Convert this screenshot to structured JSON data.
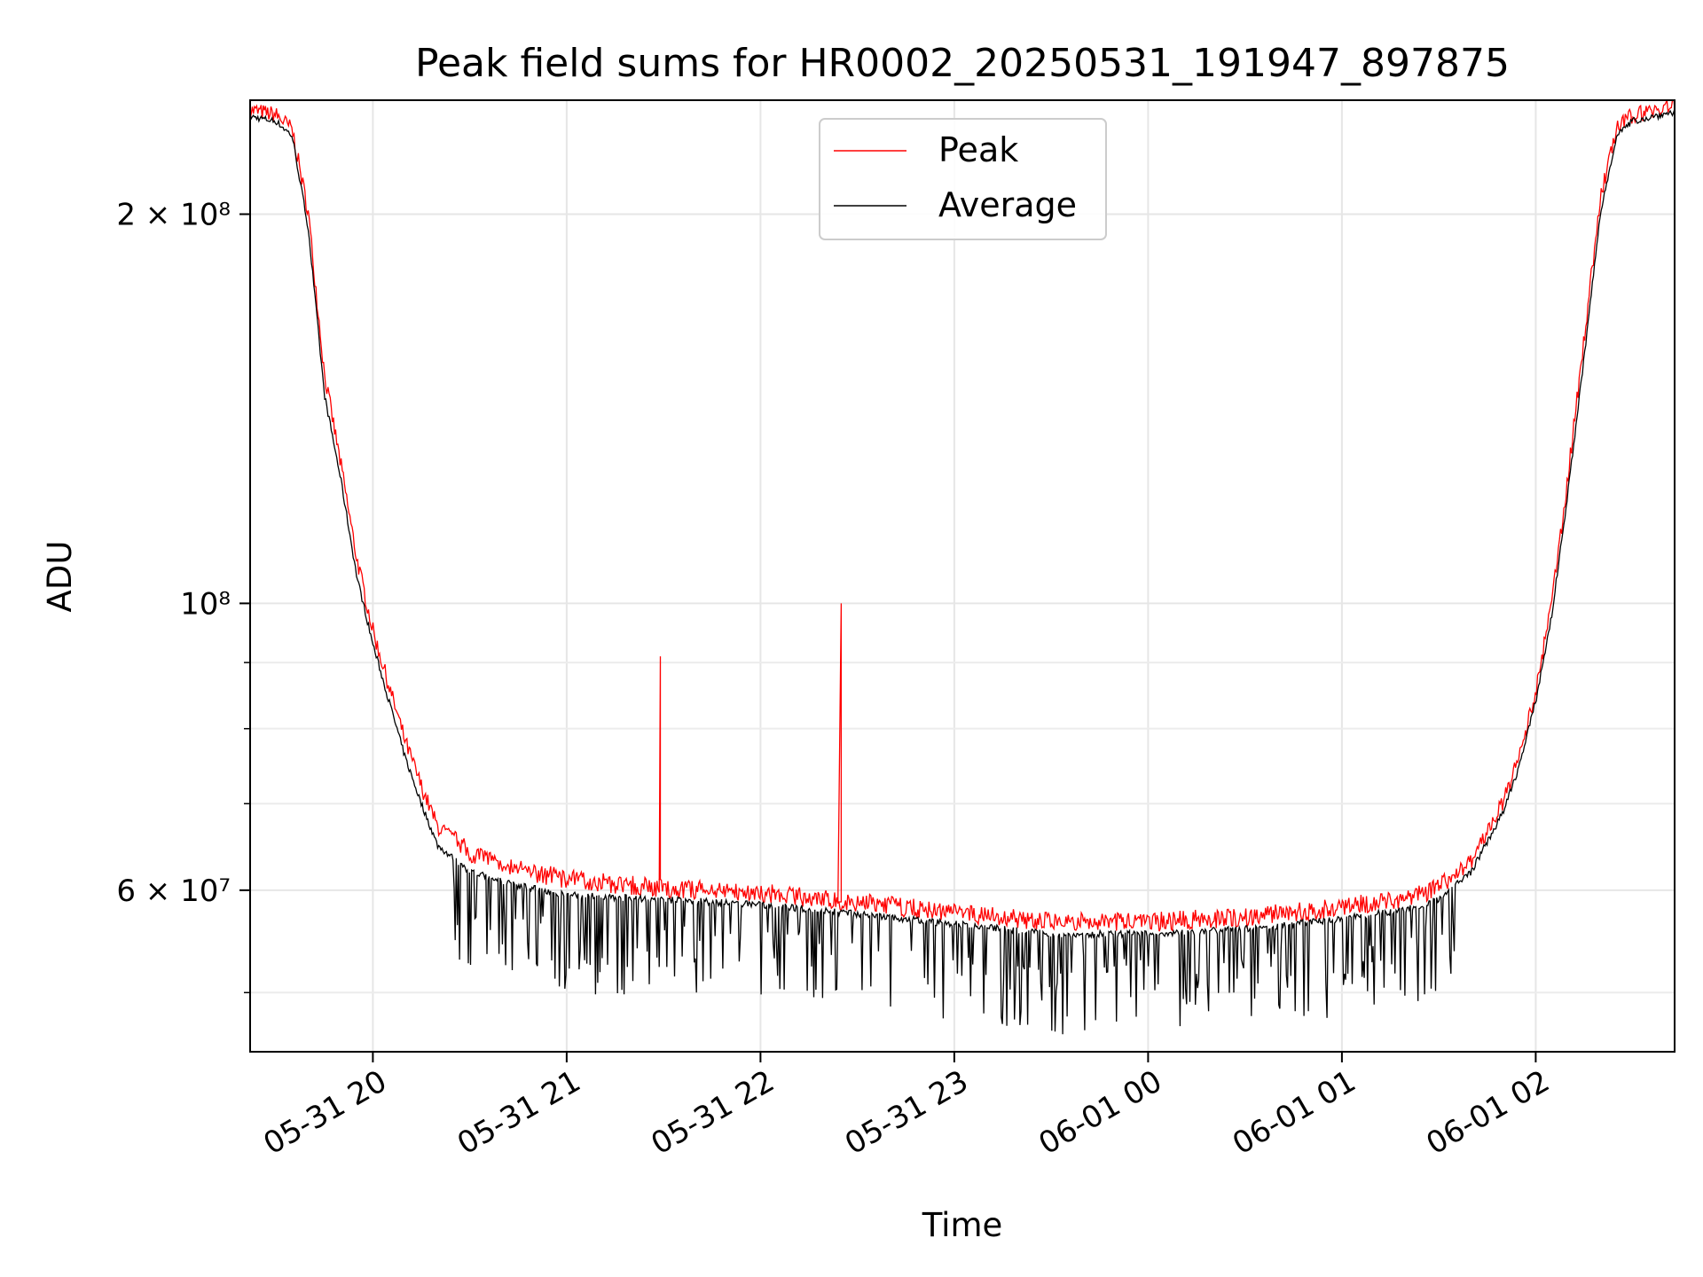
{
  "chart_data": {
    "type": "line",
    "title": "Peak field sums for HR0002_20250531_191947_897875",
    "xlabel": "Time",
    "ylabel": "ADU",
    "yscale": "log",
    "ylim": [
      45000000,
      245000000
    ],
    "xlim": [
      "2025-05-31 19:22",
      "2025-06-01 02:43"
    ],
    "grid": true,
    "legend": "top-center",
    "x_ticks": [
      "05-31 20",
      "05-31 21",
      "05-31 22",
      "05-31 23",
      "06-01 00",
      "06-01 01",
      "06-01 02"
    ],
    "y_ticks": [
      "6 × 10⁷",
      "10⁸",
      "2 × 10⁸"
    ],
    "x": [
      "2025-05-31 19:22",
      "2025-05-31 19:30",
      "2025-05-31 19:35",
      "2025-05-31 19:40",
      "2025-05-31 19:45",
      "2025-05-31 19:50",
      "2025-05-31 19:55",
      "2025-05-31 20:00",
      "2025-05-31 20:05",
      "2025-05-31 20:10",
      "2025-05-31 20:15",
      "2025-05-31 20:20",
      "2025-05-31 20:30",
      "2025-05-31 20:45",
      "2025-05-31 21:00",
      "2025-05-31 21:30",
      "2025-05-31 22:00",
      "2025-05-31 22:30",
      "2025-05-31 23:00",
      "2025-05-31 23:30",
      "2025-06-01 00:00",
      "2025-06-01 00:30",
      "2025-06-01 01:00",
      "2025-06-01 01:20",
      "2025-06-01 01:30",
      "2025-06-01 01:40",
      "2025-06-01 01:50",
      "2025-06-01 01:55",
      "2025-06-01 02:00",
      "2025-06-01 02:05",
      "2025-06-01 02:10",
      "2025-06-01 02:15",
      "2025-06-01 02:20",
      "2025-06-01 02:25",
      "2025-06-01 02:30",
      "2025-06-01 02:43"
    ],
    "series": [
      {
        "name": "Peak",
        "color": "#ff0000",
        "values": [
          240000000,
          238000000,
          232000000,
          200000000,
          150000000,
          128000000,
          108000000,
          95000000,
          86000000,
          78000000,
          72000000,
          67000000,
          64000000,
          62000000,
          61000000,
          60000000,
          59500000,
          58500000,
          57500000,
          56500000,
          56500000,
          57000000,
          58000000,
          59000000,
          60000000,
          63000000,
          70000000,
          76000000,
          85000000,
          100000000,
          125000000,
          160000000,
          205000000,
          232000000,
          238000000,
          242000000
        ]
      },
      {
        "name": "Average",
        "color": "#000000",
        "values": [
          238000000,
          236000000,
          230000000,
          195000000,
          145000000,
          125000000,
          105000000,
          93000000,
          84000000,
          76000000,
          70000000,
          65000000,
          62000000,
          60500000,
          59500000,
          59000000,
          58500000,
          57500000,
          56500000,
          55500000,
          55500000,
          56000000,
          57000000,
          58000000,
          59000000,
          62000000,
          69000000,
          75000000,
          84000000,
          98000000,
          122000000,
          155000000,
          200000000,
          230000000,
          236000000,
          240000000
        ]
      }
    ],
    "annotations": [
      {
        "series": "Peak",
        "x": "2025-05-31 21:29",
        "y": 91000000
      },
      {
        "series": "Peak",
        "x": "2025-05-31 22:25",
        "y": 100000000
      }
    ]
  }
}
